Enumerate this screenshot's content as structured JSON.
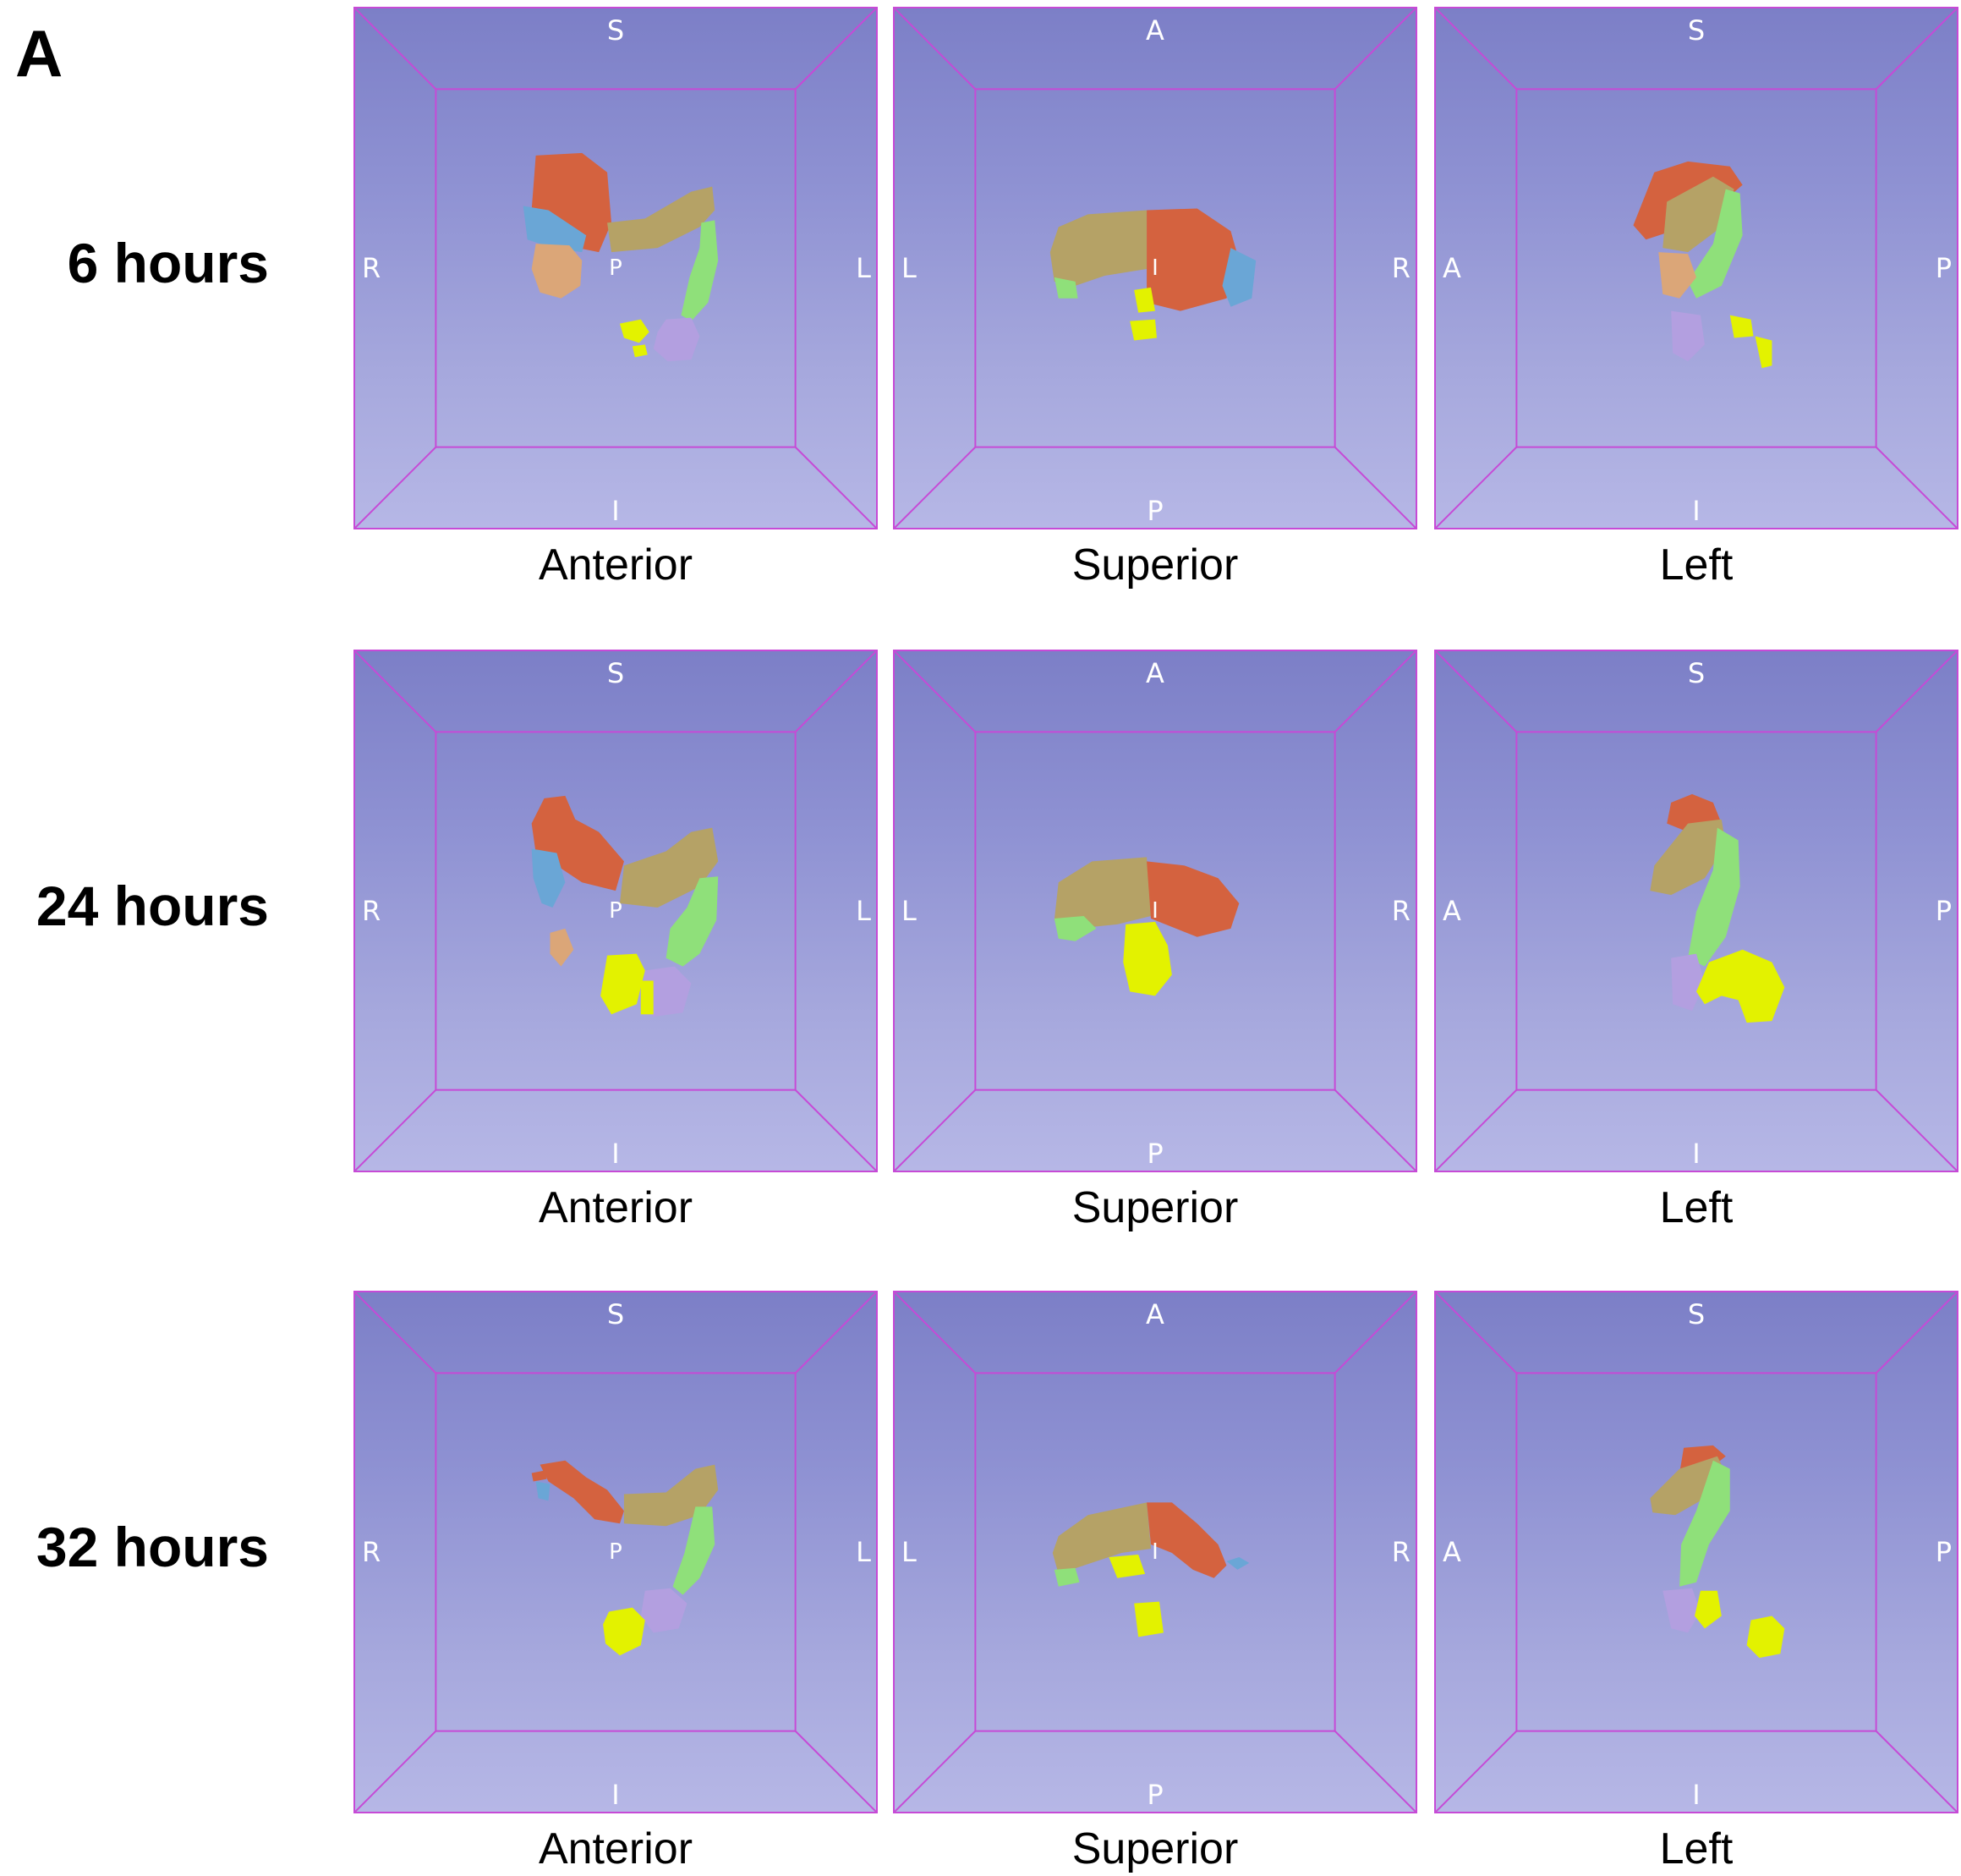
{
  "panel_letter": "A",
  "colors": {
    "frame": "#c64ad6",
    "red": "#d4623f",
    "tan": "#b5a266",
    "green": "#8fe07a",
    "yellow": "#e3f200",
    "lavender": "#b39fe0",
    "blue": "#6aa6d6",
    "peach": "#dba678"
  },
  "rows": [
    {
      "label": "6 hours",
      "views": [
        {
          "caption": "Anterior",
          "top": "S",
          "bottom": "I",
          "left": "R",
          "right": "L",
          "center": "P"
        },
        {
          "caption": "Superior",
          "top": "A",
          "bottom": "P",
          "left": "L",
          "right": "R",
          "center": "I"
        },
        {
          "caption": "Left",
          "top": "S",
          "bottom": "I",
          "left": "A",
          "right": "P",
          "center": ""
        }
      ]
    },
    {
      "label": "24 hours",
      "views": [
        {
          "caption": "Anterior",
          "top": "S",
          "bottom": "I",
          "left": "R",
          "right": "L",
          "center": "P"
        },
        {
          "caption": "Superior",
          "top": "A",
          "bottom": "P",
          "left": "L",
          "right": "R",
          "center": "I"
        },
        {
          "caption": "Left",
          "top": "S",
          "bottom": "I",
          "left": "A",
          "right": "P",
          "center": ""
        }
      ]
    },
    {
      "label": "32 hours",
      "views": [
        {
          "caption": "Anterior",
          "top": "S",
          "bottom": "I",
          "left": "R",
          "right": "L",
          "center": "P"
        },
        {
          "caption": "Superior",
          "top": "A",
          "bottom": "P",
          "left": "L",
          "right": "R",
          "center": "I"
        },
        {
          "caption": "Left",
          "top": "S",
          "bottom": "I",
          "left": "A",
          "right": "P",
          "center": ""
        }
      ]
    }
  ]
}
